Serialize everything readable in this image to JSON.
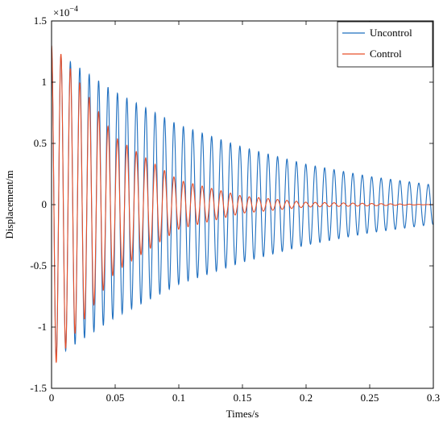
{
  "chart_data": {
    "type": "line",
    "title": "",
    "xlabel": "Times/s",
    "ylabel": "Displacement/m",
    "y_multiplier": "×10",
    "y_multiplier_exp": "−4",
    "xlim": [
      0,
      0.3
    ],
    "ylim": [
      -1.5,
      1.5
    ],
    "x_ticks": [
      0,
      0.05,
      0.1,
      0.15,
      0.2,
      0.25,
      0.3
    ],
    "x_tick_labels": [
      "0",
      "0.05",
      "0.1",
      "0.15",
      "0.2",
      "0.25",
      "0.3"
    ],
    "y_ticks": [
      -1.5,
      -1,
      -0.5,
      0,
      0.5,
      1,
      1.5
    ],
    "y_tick_labels": [
      "-1.5",
      "-1",
      "-0.5",
      "0",
      "0.5",
      "1",
      "1.5"
    ],
    "grid": false,
    "legend_position": "top-right",
    "series": [
      {
        "name": "Uncontrol",
        "color": "#1f6fbf",
        "model": "damped_sine",
        "amplitude_start": 1.28,
        "amplitude_end": 0.15,
        "period_s": 0.0074,
        "samples": [
          {
            "t": 0.003,
            "peak": 1.25
          },
          {
            "t": 0.05,
            "peak": 0.92
          },
          {
            "t": 0.1,
            "peak": 0.65
          },
          {
            "t": 0.15,
            "peak": 0.47
          },
          {
            "t": 0.2,
            "peak": 0.33
          },
          {
            "t": 0.25,
            "peak": 0.23
          },
          {
            "t": 0.3,
            "peak": 0.16
          }
        ]
      },
      {
        "name": "Control",
        "color": "#e8502a",
        "model": "damped_sine",
        "amplitude_start": 1.3,
        "amplitude_end": 0.0,
        "period_s": 0.0074,
        "samples": [
          {
            "t": 0.003,
            "peak": 1.3
          },
          {
            "t": 0.05,
            "peak": 0.55
          },
          {
            "t": 0.1,
            "peak": 0.2
          },
          {
            "t": 0.15,
            "peak": 0.07
          },
          {
            "t": 0.2,
            "peak": 0.02
          },
          {
            "t": 0.25,
            "peak": 0.01
          },
          {
            "t": 0.3,
            "peak": 0.0
          }
        ]
      }
    ]
  }
}
